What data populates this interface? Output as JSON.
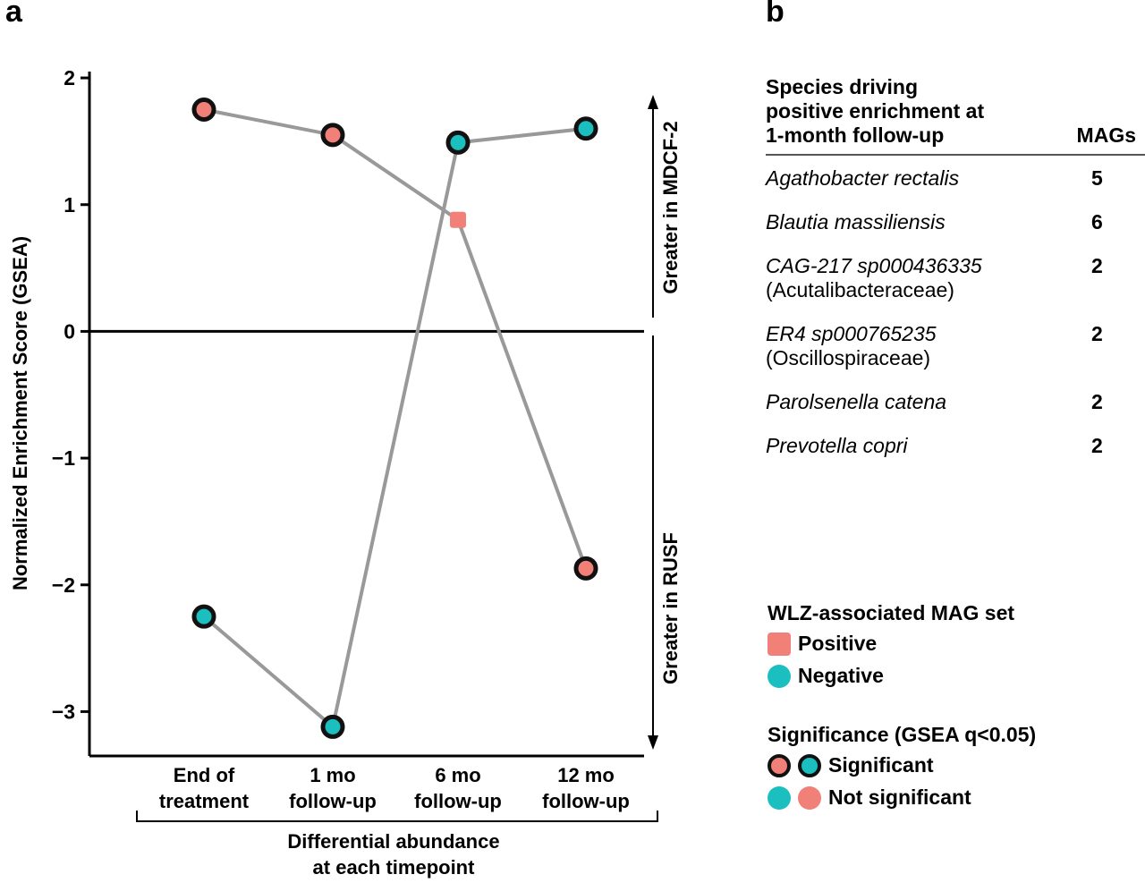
{
  "panel_a_label": "a",
  "panel_b_label": "b",
  "chart_data": {
    "type": "line",
    "ylabel": "Normalized Enrichment Score (GSEA)",
    "ylim": [
      -3.35,
      2.05
    ],
    "yticks": [
      2,
      1,
      0,
      -1,
      -2,
      -3
    ],
    "ytick_labels": [
      "2",
      "1",
      "0",
      "−1",
      "−2",
      "−3"
    ],
    "categories": [
      {
        "line1": "End of",
        "line2": "treatment"
      },
      {
        "line1": "1 mo",
        "line2": "follow-up"
      },
      {
        "line1": "6 mo",
        "line2": "follow-up"
      },
      {
        "line1": "12 mo",
        "line2": "follow-up"
      }
    ],
    "xlabel_line1": "Differential abundance",
    "xlabel_line2": "at each timepoint",
    "grid": false,
    "right_annotations": {
      "up": "Greater in MDCF-2",
      "down": "Greater in RUSF"
    },
    "series": [
      {
        "name": "Positive",
        "color": "#f08078",
        "values": [
          1.75,
          1.55,
          0.88,
          -1.87
        ],
        "significant": [
          true,
          true,
          false,
          true
        ]
      },
      {
        "name": "Negative",
        "color": "#1bbfbf",
        "values": [
          -2.25,
          -3.12,
          1.49,
          1.6
        ],
        "significant": [
          true,
          true,
          true,
          true
        ]
      }
    ],
    "line_color": "#999999"
  },
  "table": {
    "header_species_1": "Species driving",
    "header_species_2": "positive enrichment at",
    "header_species_3": "1-month follow-up",
    "header_mags": "MAGs",
    "rows": [
      {
        "species": "Agathobacter rectalis",
        "family": "",
        "count": "5"
      },
      {
        "species": "Blautia massiliensis",
        "family": "",
        "count": "6"
      },
      {
        "species": "CAG-217 sp000436335",
        "family": "(Acutalibacteraceae)",
        "count": "2"
      },
      {
        "species": "ER4 sp000765235",
        "family": "(Oscillospiraceae)",
        "count": "2"
      },
      {
        "species": "Parolsenella catena",
        "family": "",
        "count": "2"
      },
      {
        "species": "Prevotella copri",
        "family": "",
        "count": "2"
      }
    ]
  },
  "legend": {
    "mag_title": "WLZ-associated MAG set",
    "positive": "Positive",
    "negative": "Negative",
    "sig_title": "Significance (GSEA q<0.05)",
    "significant": "Significant",
    "not_significant": "Not significant",
    "positive_color": "#f08078",
    "negative_color": "#1bbfbf"
  }
}
